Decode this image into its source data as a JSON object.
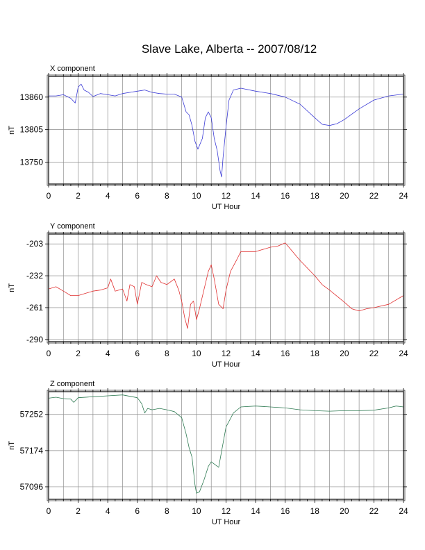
{
  "title": "Slave Lake, Alberta -- 2007/08/12",
  "chart_data": [
    {
      "type": "line",
      "panel_label": "X component",
      "xlabel": "UT Hour",
      "ylabel": "nT",
      "xlim": [
        0,
        24
      ],
      "ylim": [
        13713,
        13895
      ],
      "x_ticks": [
        0,
        2,
        4,
        6,
        8,
        10,
        12,
        14,
        16,
        18,
        20,
        22,
        24
      ],
      "y_ticks": [
        13750,
        13805,
        13860
      ],
      "grid": true,
      "color": "#3b3bd6",
      "x": [
        0,
        0.5,
        1,
        1.5,
        1.8,
        2,
        2.2,
        2.4,
        2.7,
        3,
        3.5,
        4,
        4.5,
        5,
        5.5,
        6,
        6.5,
        7,
        7.5,
        8,
        8.5,
        9,
        9.3,
        9.5,
        9.7,
        9.9,
        10.1,
        10.4,
        10.6,
        10.8,
        11,
        11.2,
        11.4,
        11.6,
        11.7,
        11.8,
        12,
        12.2,
        12.5,
        13,
        14,
        15,
        16,
        17,
        18,
        18.5,
        19,
        19.5,
        20,
        21,
        22,
        23,
        24
      ],
      "y": [
        13862,
        13862,
        13864,
        13858,
        13850,
        13877,
        13882,
        13872,
        13868,
        13861,
        13866,
        13864,
        13862,
        13866,
        13868,
        13870,
        13872,
        13868,
        13866,
        13865,
        13865,
        13860,
        13835,
        13830,
        13812,
        13785,
        13772,
        13790,
        13825,
        13835,
        13825,
        13790,
        13770,
        13735,
        13725,
        13758,
        13810,
        13855,
        13872,
        13875,
        13870,
        13866,
        13860,
        13848,
        13825,
        13814,
        13812,
        13815,
        13822,
        13840,
        13855,
        13862,
        13865
      ]
    },
    {
      "type": "line",
      "panel_label": "Y component",
      "xlabel": "UT Hour",
      "ylabel": "nT",
      "xlim": [
        0,
        24
      ],
      "ylim": [
        -292,
        -194
      ],
      "x_ticks": [
        0,
        2,
        4,
        6,
        8,
        10,
        12,
        14,
        16,
        18,
        20,
        22,
        24
      ],
      "y_ticks": [
        -290,
        -261,
        -232,
        -203
      ],
      "grid": true,
      "color": "#e03030",
      "x": [
        0,
        0.5,
        1,
        1.5,
        2,
        2.5,
        3,
        3.5,
        4,
        4.2,
        4.5,
        5,
        5.3,
        5.5,
        5.8,
        6,
        6.3,
        6.6,
        7,
        7.3,
        7.6,
        8,
        8.5,
        8.8,
        9,
        9.2,
        9.4,
        9.6,
        9.8,
        10,
        10.2,
        10.5,
        10.8,
        11,
        11.2,
        11.5,
        11.8,
        12,
        12.3,
        12.7,
        13,
        14,
        15,
        15.5,
        16,
        16.5,
        17,
        18,
        18.5,
        19,
        20,
        20.5,
        21,
        21.5,
        22,
        23,
        24
      ],
      "y": [
        -244,
        -242,
        -246,
        -250,
        -250,
        -248,
        -246,
        -245,
        -243,
        -235,
        -246,
        -244,
        -255,
        -240,
        -242,
        -258,
        -238,
        -240,
        -242,
        -232,
        -238,
        -240,
        -235,
        -245,
        -255,
        -270,
        -280,
        -258,
        -255,
        -272,
        -262,
        -245,
        -228,
        -222,
        -235,
        -258,
        -262,
        -245,
        -228,
        -218,
        -210,
        -210,
        -206,
        -205,
        -202,
        -210,
        -218,
        -232,
        -240,
        -245,
        -256,
        -262,
        -264,
        -262,
        -261,
        -258,
        -250
      ]
    },
    {
      "type": "line",
      "panel_label": "Z component",
      "xlabel": "UT Hour",
      "ylabel": "nT",
      "xlim": [
        0,
        24
      ],
      "ylim": [
        57069,
        57301
      ],
      "x_ticks": [
        0,
        2,
        4,
        6,
        8,
        10,
        12,
        14,
        16,
        18,
        20,
        22,
        24
      ],
      "y_ticks": [
        57096,
        57174,
        57252
      ],
      "grid": true,
      "color": "#2e7a52",
      "x": [
        0,
        0.5,
        1,
        1.5,
        1.7,
        2,
        3,
        4,
        5,
        6,
        6.3,
        6.5,
        6.7,
        7,
        7.5,
        8,
        8.5,
        9,
        9.3,
        9.5,
        9.7,
        9.9,
        10,
        10.2,
        10.5,
        10.8,
        11,
        11.2,
        11.5,
        11.8,
        12,
        12.5,
        13,
        14,
        15,
        16,
        17,
        18,
        19,
        20,
        21,
        22,
        23,
        23.5,
        24
      ],
      "y": [
        57287,
        57289,
        57286,
        57285,
        57278,
        57288,
        57290,
        57292,
        57294,
        57288,
        57275,
        57255,
        57265,
        57262,
        57265,
        57262,
        57258,
        57245,
        57210,
        57180,
        57160,
        57100,
        57082,
        57085,
        57110,
        57140,
        57150,
        57145,
        57138,
        57190,
        57225,
        57255,
        57268,
        57270,
        57268,
        57266,
        57262,
        57260,
        57259,
        57260,
        57260,
        57261,
        57266,
        57270,
        57268
      ]
    }
  ]
}
